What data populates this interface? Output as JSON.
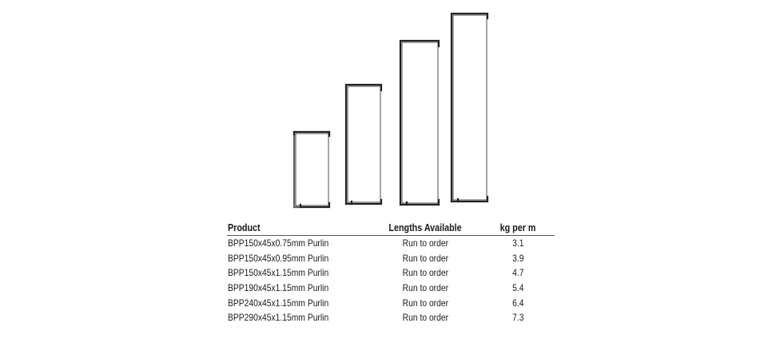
{
  "profiles": [
    {
      "product": "BPP150x45x0.75mm Purlin",
      "depth_mm": 150
    },
    {
      "product": "BPP190x45x1.15mm Purlin",
      "depth_mm": 190
    },
    {
      "product": "BPP240x45x1.15mm Purlin",
      "depth_mm": 240
    },
    {
      "product": "BPP290x45x1.15mm Purlin",
      "depth_mm": 290
    }
  ],
  "table": {
    "headers": {
      "product": "Product",
      "lengths": "Lengths Available",
      "kg": "kg per m"
    },
    "rows": [
      {
        "product": "BPP150x45x0.75mm Purlin",
        "lengths": "Run to order",
        "kg": "3.1"
      },
      {
        "product": "BPP150x45x0.95mm Purlin",
        "lengths": "Run to order",
        "kg": "3.9"
      },
      {
        "product": "BPP150x45x1.15mm Purlin",
        "lengths": "Run to order",
        "kg": "4.7"
      },
      {
        "product": "BPP190x45x1.15mm Purlin",
        "lengths": "Run to order",
        "kg": "5.4"
      },
      {
        "product": "BPP240x45x1.15mm Purlin",
        "lengths": "Run to order",
        "kg": "6.4"
      },
      {
        "product": "BPP290x45x1.15mm Purlin",
        "lengths": "Run to order",
        "kg": "7.3"
      }
    ]
  }
}
